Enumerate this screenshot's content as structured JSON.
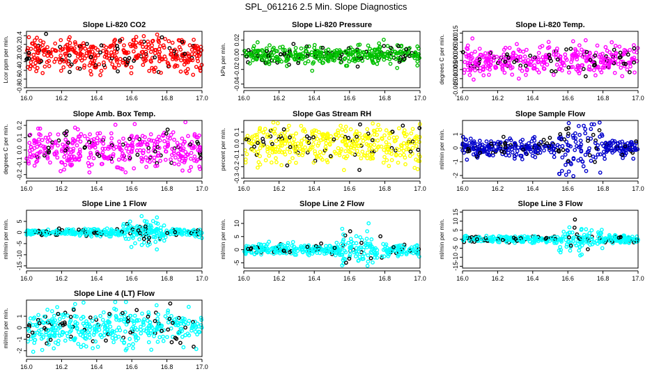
{
  "title": "SPL_061216  2.5 Min. Slope Diagnostics",
  "chart_data": [
    {
      "type": "scatter",
      "title": "Slope Li-820 CO2",
      "ylabel": "Lcor ppm per min.",
      "xlim": [
        16.0,
        17.0
      ],
      "ylim": [
        -0.8,
        0.5
      ],
      "color": "#ff0000",
      "xticks": [
        "16.0",
        "16.2",
        "16.4",
        "16.6",
        "16.8",
        "17.0"
      ],
      "yticks": [
        "-0.8",
        "-0.6",
        "-0.4",
        "-0.2",
        "0.0",
        "0.2",
        "0.4"
      ],
      "ytick_values": [
        -0.8,
        -0.6,
        -0.4,
        -0.2,
        0.0,
        0.2,
        0.4
      ],
      "spread": 0.2,
      "n": 420,
      "seed": 11
    },
    {
      "type": "scatter",
      "title": "Slope Li-820 Pressure",
      "ylabel": "kPa per min.",
      "xlim": [
        16.0,
        17.0
      ],
      "ylim": [
        -0.045,
        0.032
      ],
      "color": "#00c000",
      "xticks": [
        "16.0",
        "16.2",
        "16.4",
        "16.6",
        "16.8",
        "17.0"
      ],
      "yticks": [
        "-0.04",
        "-0.02",
        "0.00",
        "0.02"
      ],
      "ytick_values": [
        -0.04,
        -0.02,
        0.0,
        0.02
      ],
      "spread": 0.006,
      "n": 420,
      "seed": 23
    },
    {
      "type": "scatter",
      "title": "Slope Li-820 Temp.",
      "ylabel": "degrees C per min.",
      "xlim": [
        16.0,
        17.0
      ],
      "ylim": [
        -0.015,
        0.016
      ],
      "color": "#ff00ff",
      "xticks": [
        "16.0",
        "16.2",
        "16.4",
        "16.6",
        "16.8",
        "17.0"
      ],
      "yticks": [
        "-0.015",
        "-0.010",
        "-0.005",
        "0.000",
        "0.005",
        "0.010",
        "0.015"
      ],
      "ytick_values": [
        -0.015,
        -0.01,
        -0.005,
        0.0,
        0.005,
        0.01,
        0.015
      ],
      "spread": 0.004,
      "n": 400,
      "seed": 37
    },
    {
      "type": "scatter",
      "title": "Slope Amb. Box Temp.",
      "ylabel": "degrees C per min.",
      "xlim": [
        16.0,
        17.0
      ],
      "ylim": [
        -0.23,
        0.24
      ],
      "color": "#ff00ff",
      "xticks": [
        "16.0",
        "16.2",
        "16.4",
        "16.6",
        "16.8",
        "17.0"
      ],
      "yticks": [
        "-0.2",
        "-0.1",
        "0.0",
        "0.1",
        "0.2"
      ],
      "ytick_values": [
        -0.2,
        -0.1,
        0.0,
        0.1,
        0.2
      ],
      "spread": 0.08,
      "n": 400,
      "seed": 41
    },
    {
      "type": "scatter",
      "title": "Slope Gas Stream RH",
      "ylabel": "percent per min.",
      "xlim": [
        16.0,
        17.0
      ],
      "ylim": [
        -0.3,
        0.2
      ],
      "color": "#ffff00",
      "xticks": [
        "16.0",
        "16.2",
        "16.4",
        "16.6",
        "16.8",
        "17.0"
      ],
      "yticks": [
        "-0.3",
        "-0.2",
        "-0.1",
        "0.0",
        "0.1"
      ],
      "ytick_values": [
        -0.3,
        -0.2,
        -0.1,
        0.0,
        0.1
      ],
      "spread": 0.09,
      "n": 420,
      "seed": 53
    },
    {
      "type": "scatter",
      "title": "Slope Sample Flow",
      "ylabel": "ml/min per min.",
      "xlim": [
        16.0,
        17.0
      ],
      "ylim": [
        -2.2,
        2.0
      ],
      "color": "#0000cc",
      "xticks": [
        "16.0",
        "16.2",
        "16.4",
        "16.6",
        "16.8",
        "17.0"
      ],
      "yticks": [
        "-2",
        "-1",
        "0",
        "1"
      ],
      "ytick_values": [
        -2,
        -1,
        0,
        1
      ],
      "spread": 0.3,
      "n": 420,
      "seed": 67
    },
    {
      "type": "scatter",
      "title": "Slope Line 1 Flow",
      "ylabel": "ml/min per min.",
      "xlim": [
        16.0,
        17.0
      ],
      "ylim": [
        -16,
        10
      ],
      "color": "#00ffff",
      "xticks": [
        "16.0",
        "16.2",
        "16.4",
        "16.6",
        "16.8",
        "17.0"
      ],
      "yticks": [
        "-15",
        "-10",
        "-5",
        "0",
        "5"
      ],
      "ytick_values": [
        -15,
        -10,
        -5,
        0,
        5
      ],
      "spread": 0.7,
      "n": 420,
      "seed": 71
    },
    {
      "type": "scatter",
      "title": "Slope Line 2 Flow",
      "ylabel": "ml/min per min.",
      "xlim": [
        16.0,
        17.0
      ],
      "ylim": [
        -7,
        15
      ],
      "color": "#00ffff",
      "xticks": [
        "16.0",
        "16.2",
        "16.4",
        "16.6",
        "16.8",
        "17.0"
      ],
      "yticks": [
        "-5",
        "0",
        "5",
        "10"
      ],
      "ytick_values": [
        -5,
        0,
        5,
        10
      ],
      "spread": 1.0,
      "n": 420,
      "seed": 83
    },
    {
      "type": "scatter",
      "title": "Slope Line 3 Flow",
      "ylabel": "ml/min per min.",
      "xlim": [
        16.0,
        17.0
      ],
      "ylim": [
        -16,
        16
      ],
      "color": "#00ffff",
      "xticks": [
        "16.0",
        "16.2",
        "16.4",
        "16.6",
        "16.8",
        "17.0"
      ],
      "yticks": [
        "-15",
        "-10",
        "-5",
        "0",
        "5",
        "10",
        "15"
      ],
      "ytick_values": [
        -15,
        -10,
        -5,
        0,
        5,
        10,
        15
      ],
      "spread": 1.0,
      "n": 420,
      "seed": 97
    },
    {
      "type": "scatter",
      "title": "Slope Line 4 (LT) Flow",
      "ylabel": "ml/min per min.",
      "xlim": [
        16.0,
        17.0
      ],
      "ylim": [
        -2.5,
        2.4
      ],
      "color": "#00ffff",
      "xticks": [
        "16.0",
        "16.2",
        "16.4",
        "16.6",
        "16.8",
        "17.0"
      ],
      "yticks": [
        "-2",
        "-1",
        "0",
        "1"
      ],
      "ytick_values": [
        -2,
        -1,
        0,
        1
      ],
      "spread": 0.8,
      "n": 420,
      "seed": 101
    }
  ]
}
